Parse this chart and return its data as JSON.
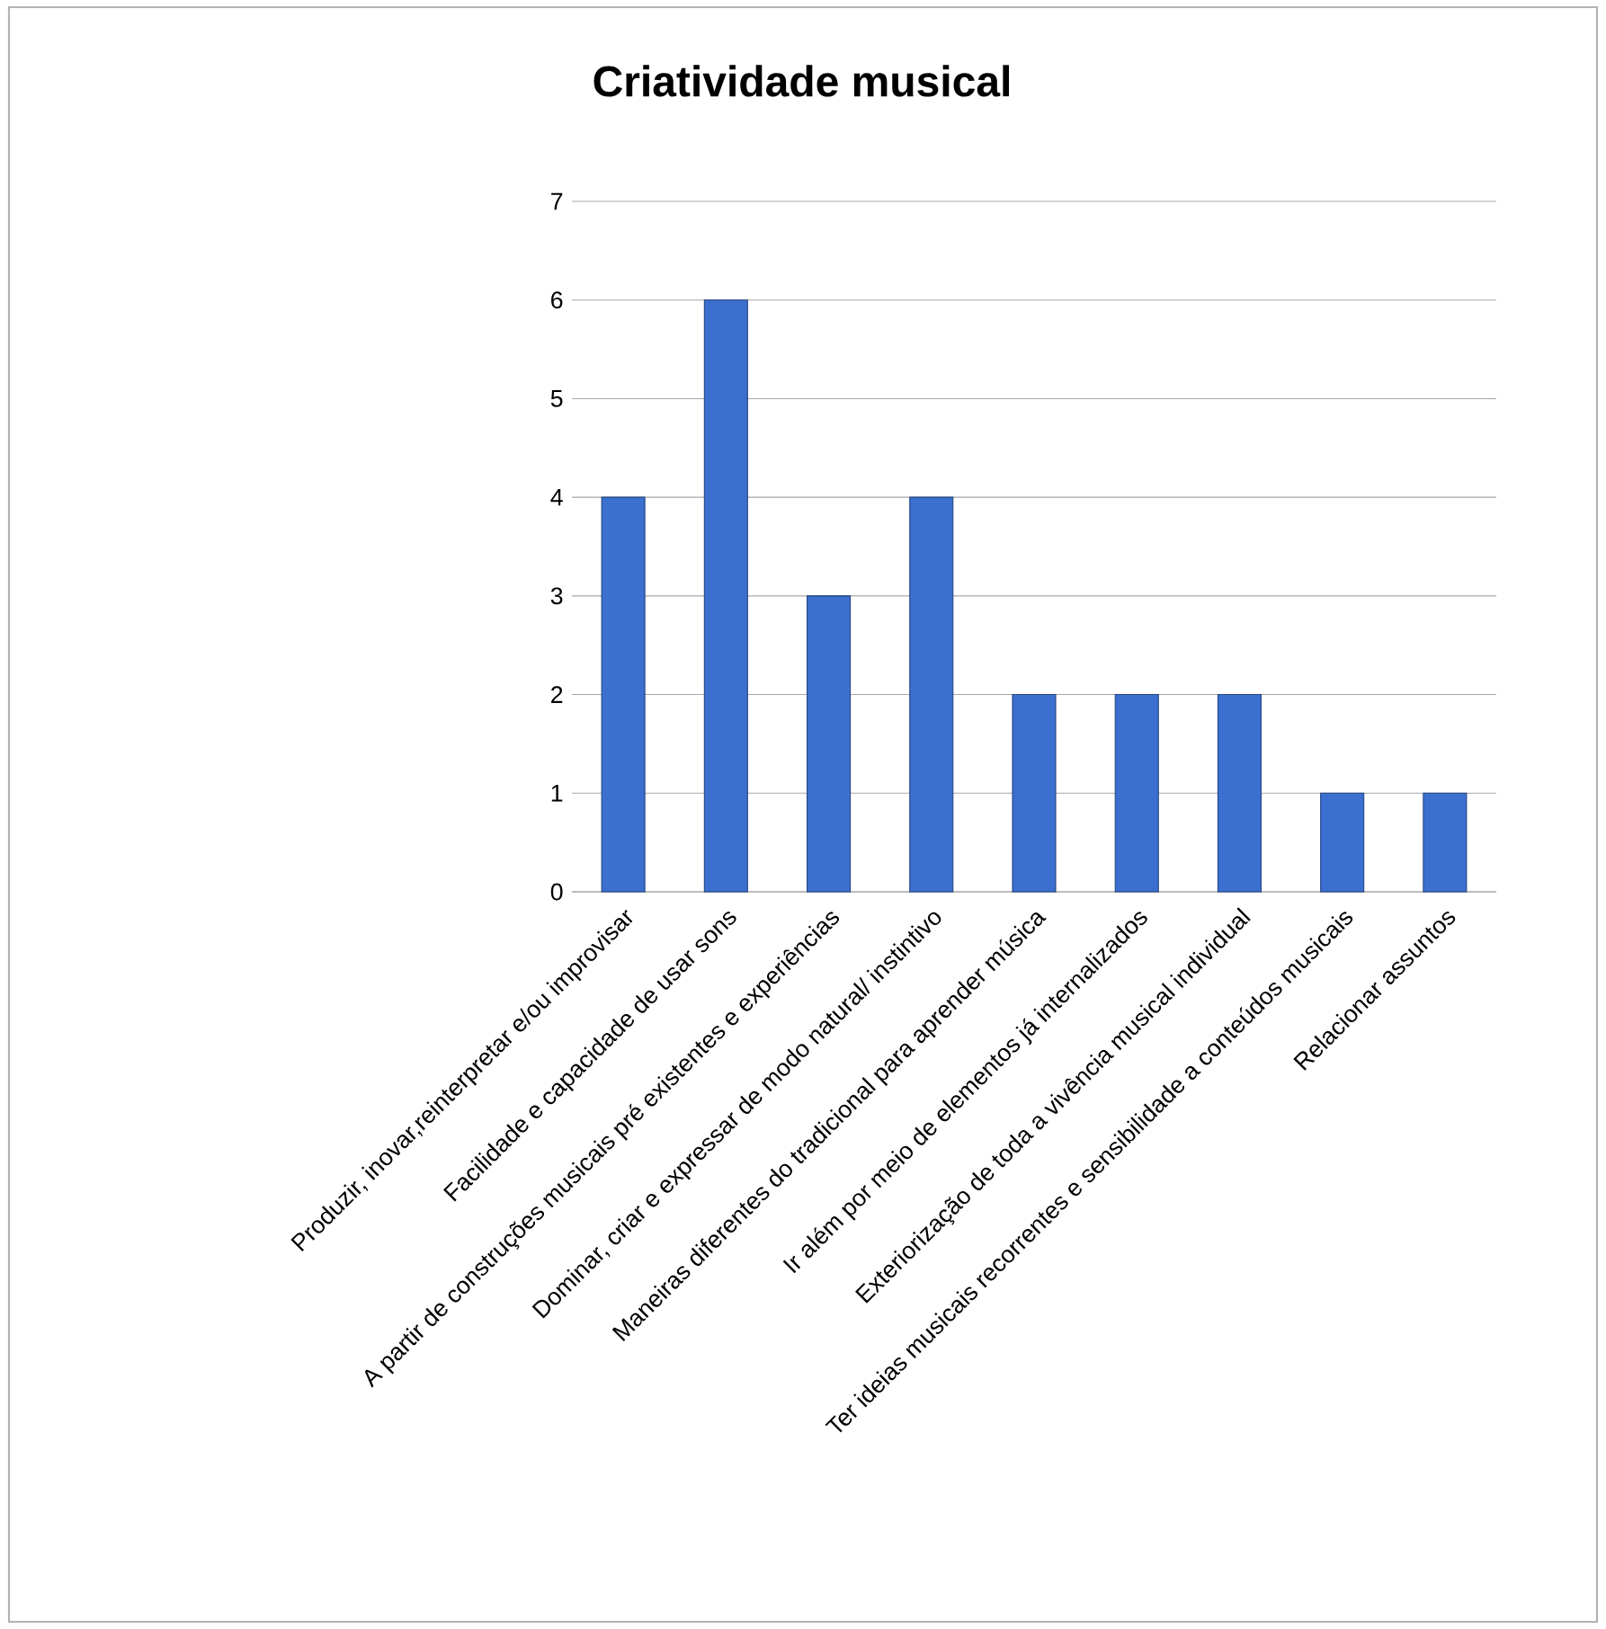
{
  "chart_data": {
    "type": "bar",
    "title": "Criatividade musical",
    "categories": [
      "Produzir, inovar,reinterpretar e/ou improvisar",
      "Facilidade e capacidade de usar sons",
      "A partir de construções musicais pré existentes e experiências",
      "Dominar, criar e expressar de modo natural/ instintivo",
      "Maneiras diferentes do tradicional para aprender música",
      "Ir além por meio de elementos já internalizados",
      "Exteriorização de toda a vivência musical individual",
      "Ter ideias musicais recorrentes  e sensibilidade a conteúdos musicais",
      "Relacionar assuntos"
    ],
    "values": [
      4,
      6,
      3,
      4,
      2,
      2,
      2,
      1,
      1
    ],
    "color": "#3b6fd0",
    "ylim": [
      0,
      7
    ],
    "yticks": [
      0,
      1,
      2,
      3,
      4,
      5,
      6,
      7
    ],
    "grid": "y"
  }
}
